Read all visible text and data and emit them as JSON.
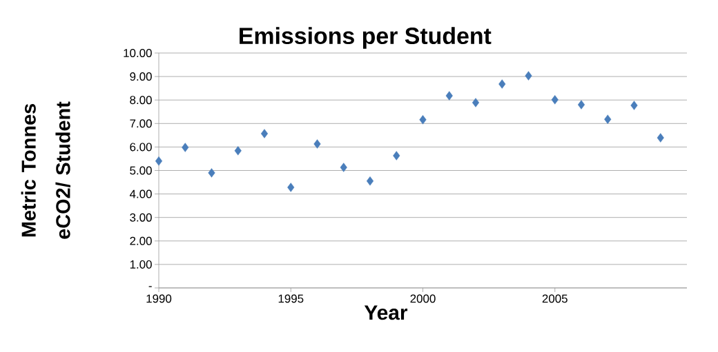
{
  "chart_data": {
    "type": "scatter",
    "title": "Emissions per Student",
    "xlabel": "Year",
    "ylabel": "Metric Tonnes eCO2/ Student",
    "x": [
      1990,
      1991,
      1992,
      1993,
      1994,
      1995,
      1996,
      1997,
      1998,
      1999,
      2000,
      2001,
      2002,
      2003,
      2004,
      2005,
      2006,
      2007,
      2008,
      2009
    ],
    "series": [
      {
        "color": "#4a7ebb",
        "values": [
          5.4,
          5.98,
          4.9,
          5.84,
          6.57,
          4.28,
          6.13,
          5.13,
          4.55,
          5.63,
          7.16,
          8.18,
          7.89,
          8.68,
          9.03,
          8.01,
          7.8,
          7.18,
          7.77,
          6.39
        ]
      }
    ],
    "xlim": [
      1990,
      2010
    ],
    "xticks": [
      1990,
      1995,
      2000,
      2005
    ],
    "ylim": [
      0,
      10
    ],
    "yticks": [
      {
        "value": 0,
        "label": "-"
      },
      {
        "value": 1,
        "label": "1.00"
      },
      {
        "value": 2,
        "label": "2.00"
      },
      {
        "value": 3,
        "label": "3.00"
      },
      {
        "value": 4,
        "label": "4.00"
      },
      {
        "value": 5,
        "label": "5.00"
      },
      {
        "value": 6,
        "label": "6.00"
      },
      {
        "value": 7,
        "label": "7.00"
      },
      {
        "value": 8,
        "label": "8.00"
      },
      {
        "value": 9,
        "label": "9.00"
      },
      {
        "value": 10,
        "label": "10.00"
      }
    ],
    "grid": "y",
    "marker": "diamond"
  }
}
